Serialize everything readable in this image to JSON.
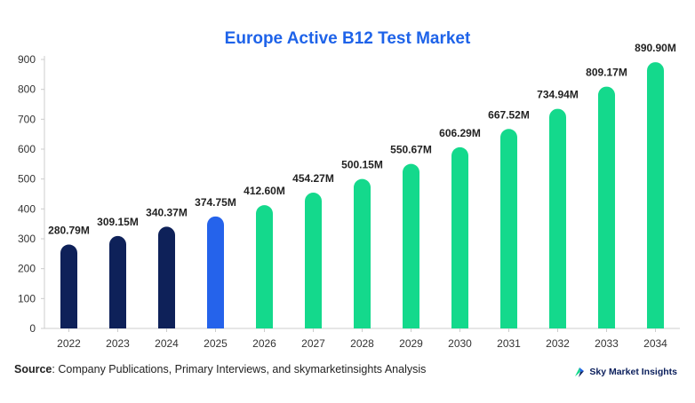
{
  "source": {
    "label": "Source",
    "text": ": Company Publications, Primary Interviews, and skymarketinsights Analysis"
  },
  "brand": {
    "name": "Sky Market Insights",
    "icon": "sky-market-insights-logo-icon"
  },
  "colors": {
    "historical": "#0e2159",
    "current": "#2563eb",
    "forecast": "#14d98c",
    "title": "#1e63e9"
  },
  "chart_data": {
    "type": "bar",
    "title": "Europe Active B12 Test Market",
    "xlabel": "",
    "ylabel": "",
    "ylim": [
      0,
      900
    ],
    "yticks": [
      0,
      100,
      200,
      300,
      400,
      500,
      600,
      700,
      800,
      900
    ],
    "grid": false,
    "legend": "none",
    "categories": [
      "2022",
      "2023",
      "2024",
      "2025",
      "2026",
      "2027",
      "2028",
      "2029",
      "2030",
      "2031",
      "2032",
      "2033",
      "2034"
    ],
    "values": [
      280.79,
      309.15,
      340.37,
      374.75,
      412.6,
      454.27,
      500.15,
      550.67,
      606.29,
      667.52,
      734.94,
      809.17,
      890.9
    ],
    "labels": [
      "280.79M",
      "309.15M",
      "340.37M",
      "374.75M",
      "412.60M",
      "454.27M",
      "500.15M",
      "550.67M",
      "606.29M",
      "667.52M",
      "734.94M",
      "809.17M",
      "890.90M"
    ],
    "bar_groups": [
      "historical",
      "historical",
      "historical",
      "current",
      "forecast",
      "forecast",
      "forecast",
      "forecast",
      "forecast",
      "forecast",
      "forecast",
      "forecast",
      "forecast"
    ]
  }
}
